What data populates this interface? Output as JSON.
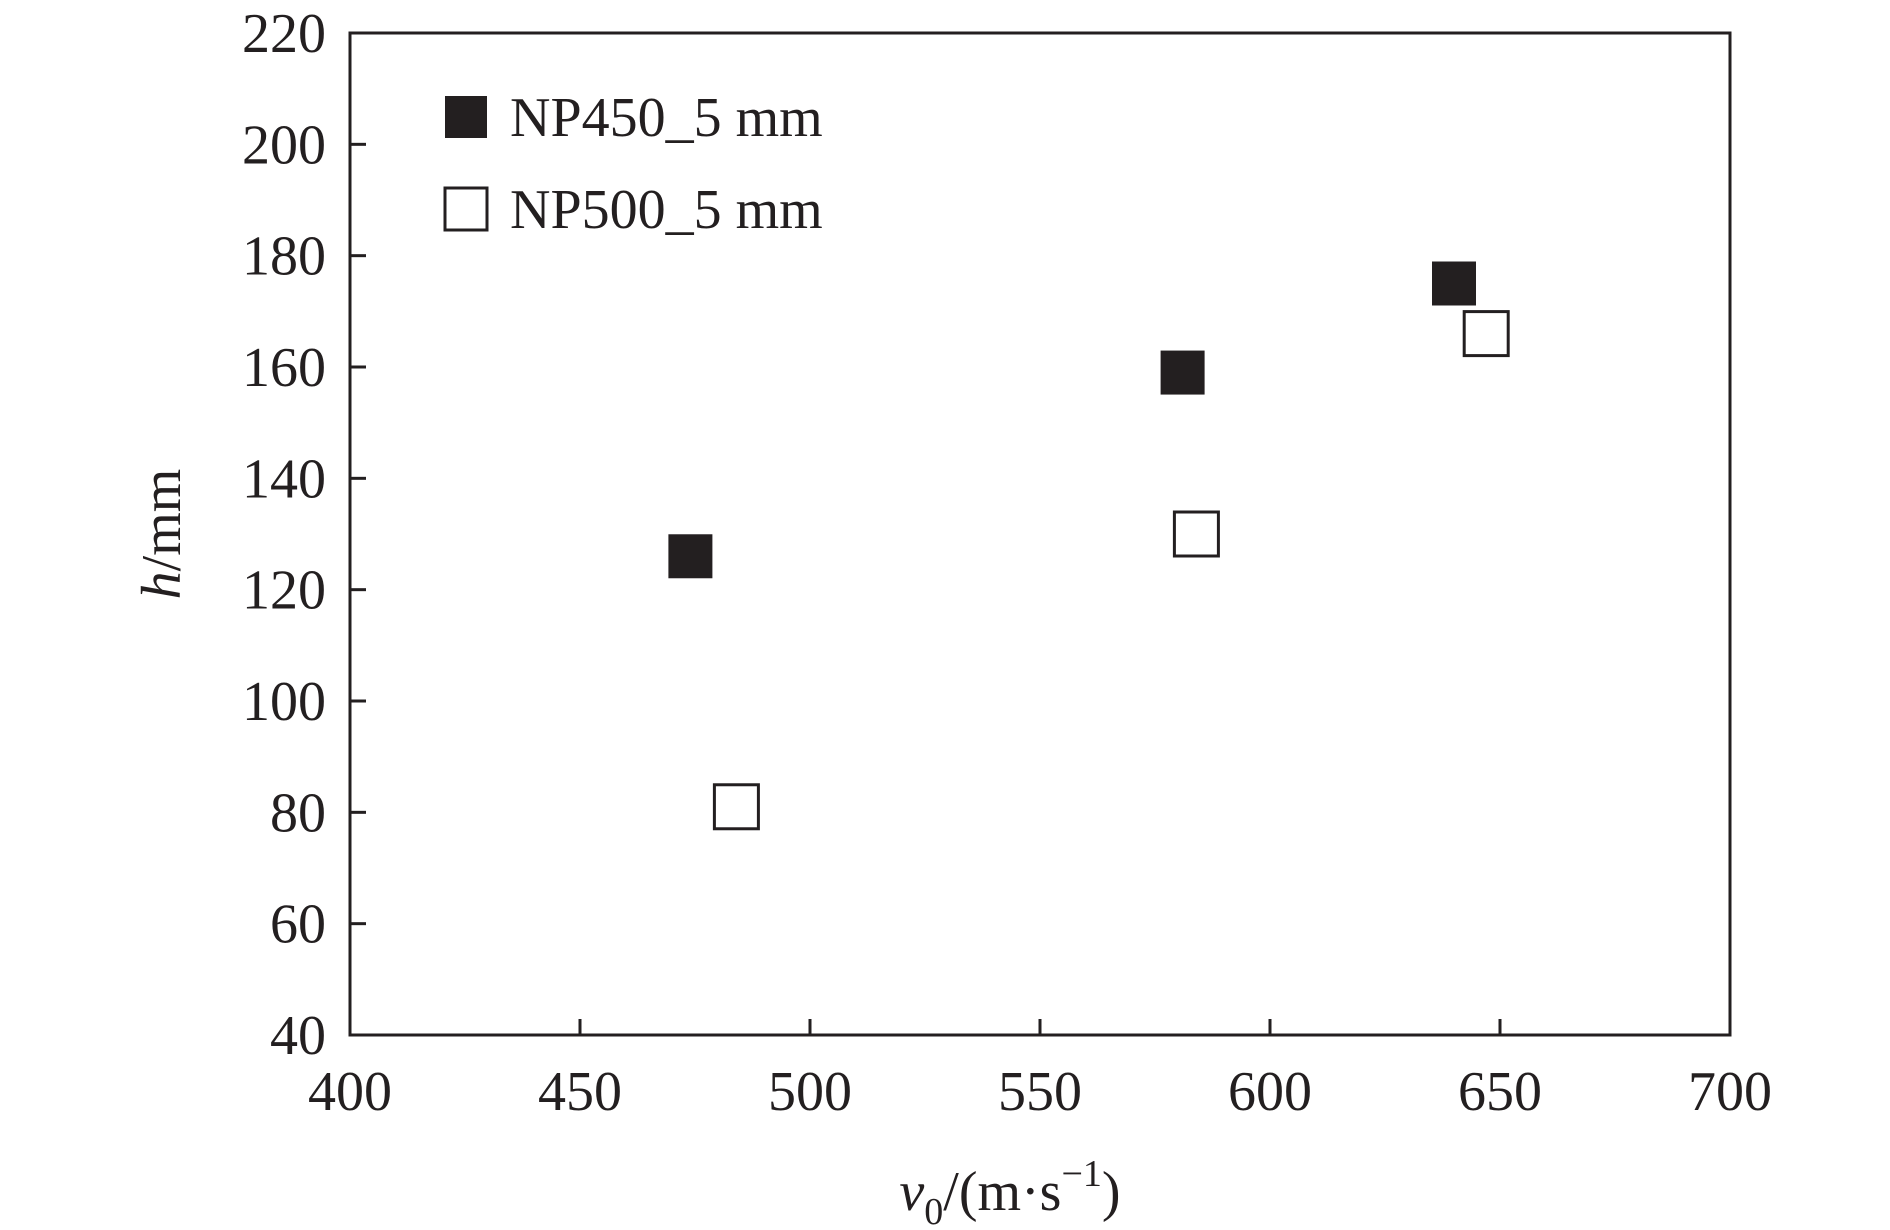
{
  "chart_data": {
    "type": "scatter",
    "xlabel": {
      "symbol": "v",
      "subscript": "0",
      "unit_prefix": "/(m·s",
      "exponent": "−1",
      "unit_suffix": ")"
    },
    "ylabel": {
      "symbol": "h",
      "unit": "/mm"
    },
    "xlim": [
      400,
      700
    ],
    "ylim": [
      40,
      220
    ],
    "xticks": [
      "400",
      "450",
      "500",
      "550",
      "600",
      "650",
      "700"
    ],
    "yticks": [
      "40",
      "60",
      "80",
      "100",
      "120",
      "140",
      "160",
      "180",
      "200",
      "220"
    ],
    "legend_position": "top-left",
    "series": [
      {
        "name": "NP450_5 mm",
        "marker": "filled-square",
        "color": "#231f20",
        "points": [
          {
            "x": 474,
            "y": 126
          },
          {
            "x": 581,
            "y": 159
          },
          {
            "x": 640,
            "y": 175
          }
        ]
      },
      {
        "name": "NP500_5 mm",
        "marker": "open-square",
        "color": "#231f20",
        "points": [
          {
            "x": 484,
            "y": 81
          },
          {
            "x": 584,
            "y": 130
          },
          {
            "x": 647,
            "y": 166
          }
        ]
      }
    ]
  }
}
